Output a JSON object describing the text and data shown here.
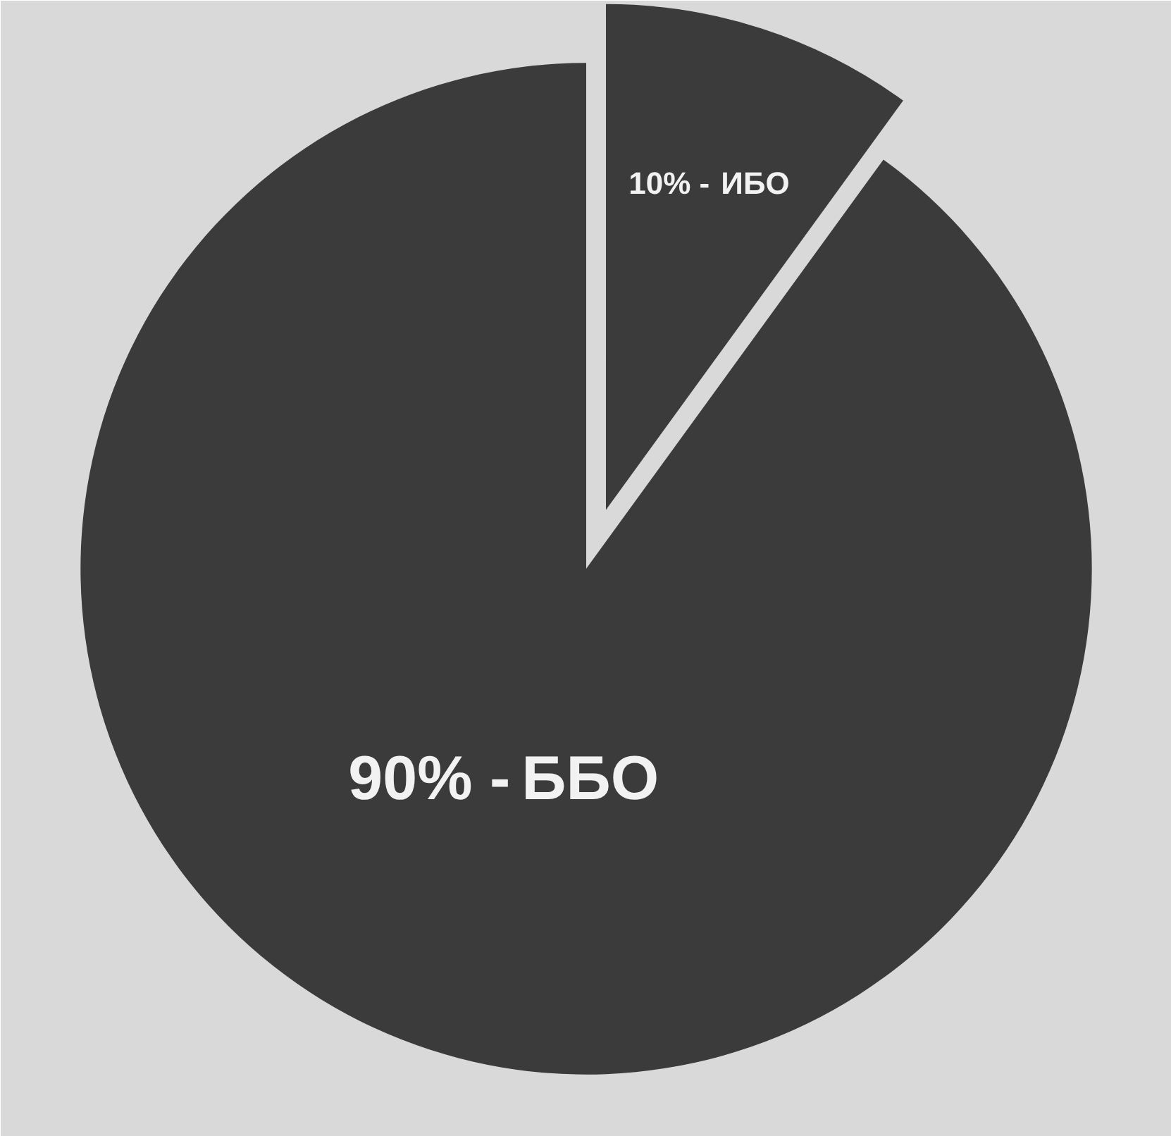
{
  "chart_data": {
    "type": "pie",
    "categories": [
      "ИБО",
      "ББО"
    ],
    "values": [
      10,
      90
    ],
    "colors": [
      "#3b3b3b",
      "#3b3b3b"
    ],
    "value_labels": [
      "10% -",
      "90% -"
    ]
  }
}
